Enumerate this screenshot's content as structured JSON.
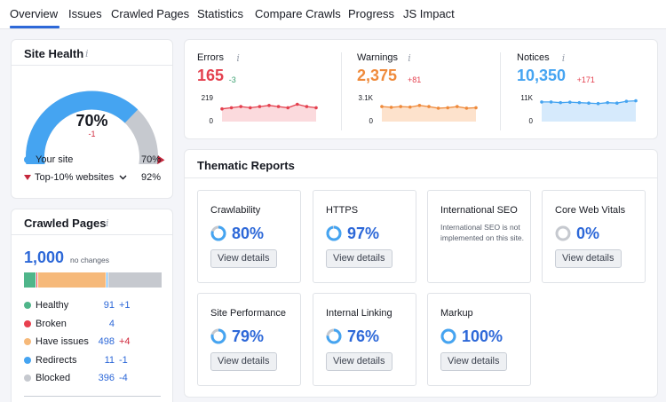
{
  "tabs": [
    {
      "label": "Overview",
      "active": true
    },
    {
      "label": "Issues"
    },
    {
      "label": "Crawled Pages"
    },
    {
      "label": "Statistics"
    },
    {
      "label": "Compare Crawls"
    },
    {
      "label": "Progress"
    },
    {
      "label": "JS Impact"
    }
  ],
  "site_health": {
    "title": "Site Health",
    "info": "i",
    "score": "70%",
    "score_value": 70,
    "top10_value": 92,
    "delta": "-1",
    "your_site_label": "Your site",
    "your_site_value": "70%",
    "top10_label": "Top-10% websites",
    "top10_value_text": "92%",
    "colors": {
      "site": "#45a4f1",
      "top10": "#c4263b",
      "track": "#c6c9cf"
    }
  },
  "crawled_pages": {
    "title": "Crawled Pages",
    "info": "i",
    "total": "1,000",
    "total_note": "no changes",
    "bar": [
      {
        "name": "Healthy",
        "value": 91,
        "color": "#4fb58a"
      },
      {
        "name": "Broken",
        "value": 4,
        "color": "#e8404f"
      },
      {
        "name": "Have issues",
        "value": 498,
        "color": "#f6b97a"
      },
      {
        "name": "Redirects",
        "value": 11,
        "color": "#45a4f1"
      },
      {
        "name": "Blocked",
        "value": 396,
        "color": "#c6c9cf"
      }
    ],
    "rows": [
      {
        "label": "Healthy",
        "value": "91",
        "delta": "+1",
        "delta_color": "#2d68d8"
      },
      {
        "label": "Broken",
        "value": "4",
        "delta": "",
        "delta_color": "#2d68d8"
      },
      {
        "label": "Have issues",
        "value": "498",
        "delta": "+4",
        "delta_color": "#d0283c"
      },
      {
        "label": "Redirects",
        "value": "11",
        "delta": "-1",
        "delta_color": "#2d68d8"
      },
      {
        "label": "Blocked",
        "value": "396",
        "delta": "-4",
        "delta_color": "#2d68d8"
      }
    ]
  },
  "metrics": [
    {
      "label": "Errors",
      "info": "i",
      "value": "165",
      "delta": "-3",
      "delta_color": "#3aa070",
      "color": "#e4414f",
      "fill": "#fbdadd",
      "ymax": "219",
      "ymin": "0",
      "series": [
        0.45,
        0.4,
        0.35,
        0.4,
        0.35,
        0.3,
        0.35,
        0.4,
        0.25,
        0.35,
        0.4
      ]
    },
    {
      "label": "Warnings",
      "info": "i",
      "value": "2,375",
      "delta": "+81",
      "delta_color": "#e4414f",
      "color": "#ef8a3b",
      "fill": "#fde2cc",
      "ymax": "3.1K",
      "ymin": "0",
      "series": [
        0.35,
        0.38,
        0.35,
        0.37,
        0.3,
        0.35,
        0.42,
        0.4,
        0.35,
        0.42,
        0.4
      ]
    },
    {
      "label": "Notices",
      "info": "i",
      "value": "10,350",
      "delta": "+171",
      "delta_color": "#e4414f",
      "color": "#45a4f1",
      "fill": "#d6eafc",
      "ymax": "11K",
      "ymin": "0",
      "series": [
        0.15,
        0.15,
        0.18,
        0.16,
        0.18,
        0.2,
        0.22,
        0.18,
        0.2,
        0.12,
        0.1
      ]
    }
  ],
  "thematic": {
    "title": "Thematic Reports",
    "button_label": "View details",
    "cards": [
      {
        "title": "Crawlability",
        "score": "80%",
        "value": 80
      },
      {
        "title": "HTTPS",
        "score": "97%",
        "value": 97
      },
      {
        "title": "International SEO",
        "note": "International SEO is not implemented on this site."
      },
      {
        "title": "Core Web Vitals",
        "score": "0%",
        "value": 0
      },
      {
        "title": "Site Performance",
        "score": "79%",
        "value": 79
      },
      {
        "title": "Internal Linking",
        "score": "76%",
        "value": 76
      },
      {
        "title": "Markup",
        "score": "100%",
        "value": 100
      }
    ]
  }
}
